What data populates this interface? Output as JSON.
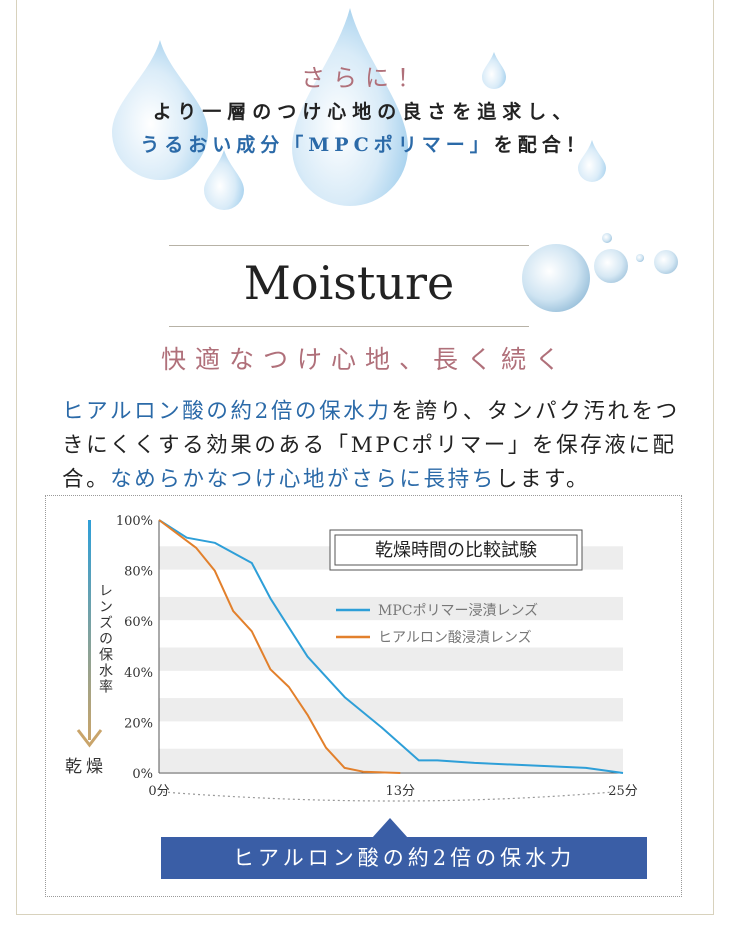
{
  "header": {
    "sarani": "さらに！",
    "line1": "より一層のつけ心地の良さを追求し、",
    "line2_blue": "うるおい成分「MPCポリマー」",
    "line2_rest": "を配合！"
  },
  "section": {
    "title": "Moisture",
    "subtitle": "快適なつけ心地、長く続く"
  },
  "body": {
    "part1_blue": "ヒアルロン酸の約2倍の保水力",
    "part1_rest": "を誇り、タンパク汚れをつきにくくする効果のある「MPCポリマー」を保存液に配合。",
    "part2_blue": "なめらかなつけ心地がさらに長持ち",
    "part2_rest": "します。"
  },
  "chart_data": {
    "type": "line",
    "title": "乾燥時間の比較試験",
    "ylabel": "レンズの保水率",
    "ylabel_bottom": "乾燥",
    "ylim": [
      0,
      100
    ],
    "xlim": [
      0,
      25
    ],
    "yticks": [
      "0%",
      "20%",
      "40%",
      "60%",
      "80%",
      "100%"
    ],
    "xticks": [
      {
        "x": 0,
        "label": "0分"
      },
      {
        "x": 13,
        "label": "13分"
      },
      {
        "x": 25,
        "label": "25分"
      }
    ],
    "grid": "horizontal bands",
    "legend_position": "middle-right",
    "series": [
      {
        "name": "MPCポリマー浸漬レンズ",
        "color": "#2e9fd8",
        "points": [
          [
            0,
            100
          ],
          [
            1.5,
            93
          ],
          [
            3,
            91
          ],
          [
            5,
            83
          ],
          [
            6,
            69
          ],
          [
            8,
            46
          ],
          [
            10,
            30
          ],
          [
            12,
            18
          ],
          [
            14,
            5
          ],
          [
            15,
            5
          ],
          [
            17,
            4
          ],
          [
            20,
            3
          ],
          [
            23,
            2
          ],
          [
            25,
            0
          ]
        ]
      },
      {
        "name": "ヒアルロン酸浸漬レンズ",
        "color": "#e2802c",
        "points": [
          [
            0,
            100
          ],
          [
            2,
            89
          ],
          [
            3,
            80
          ],
          [
            4,
            64
          ],
          [
            5,
            56
          ],
          [
            6,
            41
          ],
          [
            7,
            34
          ],
          [
            8,
            23
          ],
          [
            9,
            10
          ],
          [
            10,
            2
          ],
          [
            11,
            0.5
          ],
          [
            13,
            0
          ]
        ]
      }
    ]
  },
  "banner": "ヒアルロン酸の約2倍の保水力"
}
